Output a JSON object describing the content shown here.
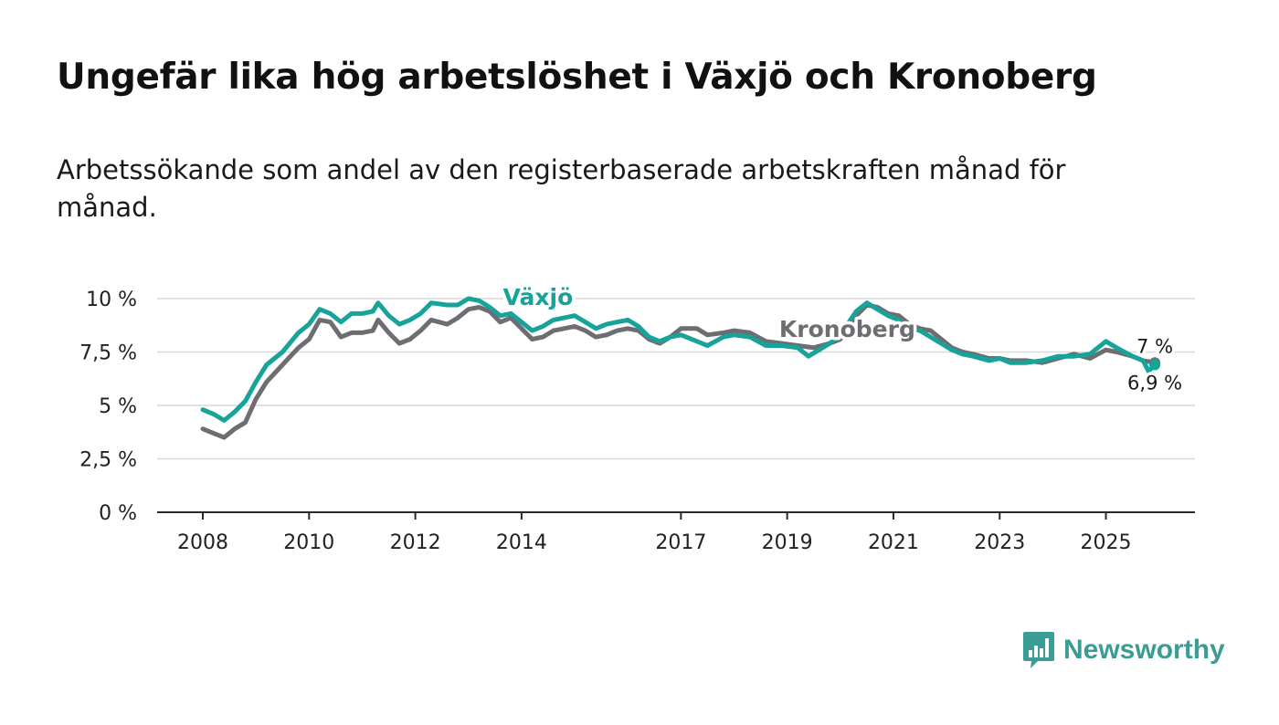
{
  "header": {
    "title": "Ungefär lika hög arbetslöshet i Växjö och Kronoberg",
    "subtitle": "Arbetssökande som andel av den registerbaserade arbetskraften månad för månad."
  },
  "brand": {
    "name": "Newsworthy",
    "color": "#3a9c94"
  },
  "chart_data": {
    "type": "line",
    "title": "Ungefär lika hög arbetslöshet i Växjö och Kronoberg",
    "subtitle": "Arbetssökande som andel av den registerbaserade arbetskraften månad för månad.",
    "xlabel": "",
    "ylabel": "",
    "xlim": [
      2008.0,
      2025.92
    ],
    "ylim": [
      0,
      10
    ],
    "y_ticks": [
      0,
      2.5,
      5,
      7.5,
      10
    ],
    "y_tick_labels": [
      "0 %",
      "2,5 %",
      "5 %",
      "7,5 %",
      "10 %"
    ],
    "x_ticks": [
      2008,
      2010,
      2012,
      2014,
      2017,
      2019,
      2021,
      2023,
      2025
    ],
    "x_tick_labels": [
      "2008",
      "2010",
      "2012",
      "2014",
      "2017",
      "2019",
      "2021",
      "2023",
      "2025"
    ],
    "grid": true,
    "series": [
      {
        "name": "Kronoberg",
        "color": "#6d6d72",
        "label": "Kronoberg",
        "end_label": "7 %",
        "points": [
          [
            2008.0,
            3.9
          ],
          [
            2008.2,
            3.7
          ],
          [
            2008.4,
            3.5
          ],
          [
            2008.6,
            3.9
          ],
          [
            2008.8,
            4.2
          ],
          [
            2009.0,
            5.3
          ],
          [
            2009.2,
            6.1
          ],
          [
            2009.5,
            6.9
          ],
          [
            2009.8,
            7.7
          ],
          [
            2010.0,
            8.1
          ],
          [
            2010.2,
            9.0
          ],
          [
            2010.4,
            8.9
          ],
          [
            2010.6,
            8.2
          ],
          [
            2010.8,
            8.4
          ],
          [
            2011.0,
            8.4
          ],
          [
            2011.2,
            8.5
          ],
          [
            2011.3,
            9.0
          ],
          [
            2011.5,
            8.4
          ],
          [
            2011.7,
            7.9
          ],
          [
            2011.9,
            8.1
          ],
          [
            2012.1,
            8.5
          ],
          [
            2012.3,
            9.0
          ],
          [
            2012.6,
            8.8
          ],
          [
            2012.8,
            9.1
          ],
          [
            2013.0,
            9.5
          ],
          [
            2013.2,
            9.6
          ],
          [
            2013.4,
            9.4
          ],
          [
            2013.6,
            8.9
          ],
          [
            2013.8,
            9.1
          ],
          [
            2014.0,
            8.6
          ],
          [
            2014.2,
            8.1
          ],
          [
            2014.4,
            8.2
          ],
          [
            2014.6,
            8.5
          ],
          [
            2014.8,
            8.6
          ],
          [
            2015.0,
            8.7
          ],
          [
            2015.2,
            8.5
          ],
          [
            2015.4,
            8.2
          ],
          [
            2015.6,
            8.3
          ],
          [
            2015.8,
            8.5
          ],
          [
            2016.0,
            8.6
          ],
          [
            2016.2,
            8.5
          ],
          [
            2016.4,
            8.1
          ],
          [
            2016.6,
            7.9
          ],
          [
            2016.8,
            8.2
          ],
          [
            2017.0,
            8.6
          ],
          [
            2017.3,
            8.6
          ],
          [
            2017.5,
            8.3
          ],
          [
            2017.8,
            8.4
          ],
          [
            2018.0,
            8.5
          ],
          [
            2018.3,
            8.4
          ],
          [
            2018.6,
            8.0
          ],
          [
            2018.9,
            7.9
          ],
          [
            2019.2,
            7.8
          ],
          [
            2019.5,
            7.7
          ],
          [
            2019.8,
            7.9
          ],
          [
            2020.0,
            8.1
          ],
          [
            2020.3,
            9.2
          ],
          [
            2020.5,
            9.7
          ],
          [
            2020.7,
            9.6
          ],
          [
            2020.9,
            9.3
          ],
          [
            2021.1,
            9.2
          ],
          [
            2021.3,
            8.8
          ],
          [
            2021.5,
            8.6
          ],
          [
            2021.7,
            8.5
          ],
          [
            2021.9,
            8.1
          ],
          [
            2022.1,
            7.7
          ],
          [
            2022.3,
            7.5
          ],
          [
            2022.5,
            7.4
          ],
          [
            2022.8,
            7.2
          ],
          [
            2023.0,
            7.2
          ],
          [
            2023.2,
            7.1
          ],
          [
            2023.5,
            7.1
          ],
          [
            2023.8,
            7.0
          ],
          [
            2024.1,
            7.2
          ],
          [
            2024.4,
            7.4
          ],
          [
            2024.7,
            7.2
          ],
          [
            2025.0,
            7.6
          ],
          [
            2025.2,
            7.5
          ],
          [
            2025.5,
            7.3
          ],
          [
            2025.7,
            7.1
          ],
          [
            2025.92,
            7.0
          ]
        ]
      },
      {
        "name": "Växjö",
        "color": "#17a399",
        "label": "Växjö",
        "end_label": "6,9 %",
        "points": [
          [
            2008.0,
            4.8
          ],
          [
            2008.2,
            4.6
          ],
          [
            2008.4,
            4.3
          ],
          [
            2008.6,
            4.7
          ],
          [
            2008.8,
            5.2
          ],
          [
            2009.0,
            6.1
          ],
          [
            2009.2,
            6.9
          ],
          [
            2009.5,
            7.5
          ],
          [
            2009.8,
            8.4
          ],
          [
            2010.0,
            8.8
          ],
          [
            2010.2,
            9.5
          ],
          [
            2010.4,
            9.3
          ],
          [
            2010.6,
            8.9
          ],
          [
            2010.8,
            9.3
          ],
          [
            2011.0,
            9.3
          ],
          [
            2011.2,
            9.4
          ],
          [
            2011.3,
            9.8
          ],
          [
            2011.5,
            9.2
          ],
          [
            2011.7,
            8.8
          ],
          [
            2011.9,
            9.0
          ],
          [
            2012.1,
            9.3
          ],
          [
            2012.3,
            9.8
          ],
          [
            2012.6,
            9.7
          ],
          [
            2012.8,
            9.7
          ],
          [
            2013.0,
            10.0
          ],
          [
            2013.2,
            9.9
          ],
          [
            2013.4,
            9.6
          ],
          [
            2013.6,
            9.2
          ],
          [
            2013.8,
            9.3
          ],
          [
            2014.0,
            8.9
          ],
          [
            2014.2,
            8.5
          ],
          [
            2014.4,
            8.7
          ],
          [
            2014.6,
            9.0
          ],
          [
            2014.8,
            9.1
          ],
          [
            2015.0,
            9.2
          ],
          [
            2015.2,
            8.9
          ],
          [
            2015.4,
            8.6
          ],
          [
            2015.6,
            8.8
          ],
          [
            2015.8,
            8.9
          ],
          [
            2016.0,
            9.0
          ],
          [
            2016.2,
            8.7
          ],
          [
            2016.4,
            8.2
          ],
          [
            2016.6,
            8.0
          ],
          [
            2016.8,
            8.2
          ],
          [
            2017.0,
            8.3
          ],
          [
            2017.3,
            8.0
          ],
          [
            2017.5,
            7.8
          ],
          [
            2017.8,
            8.2
          ],
          [
            2018.0,
            8.3
          ],
          [
            2018.3,
            8.2
          ],
          [
            2018.6,
            7.8
          ],
          [
            2018.9,
            7.8
          ],
          [
            2019.2,
            7.7
          ],
          [
            2019.4,
            7.3
          ],
          [
            2019.6,
            7.6
          ],
          [
            2019.8,
            7.9
          ],
          [
            2020.0,
            8.3
          ],
          [
            2020.3,
            9.4
          ],
          [
            2020.5,
            9.8
          ],
          [
            2020.7,
            9.5
          ],
          [
            2020.9,
            9.2
          ],
          [
            2021.1,
            9.0
          ],
          [
            2021.3,
            8.6
          ],
          [
            2021.5,
            8.5
          ],
          [
            2021.7,
            8.2
          ],
          [
            2021.9,
            7.9
          ],
          [
            2022.1,
            7.6
          ],
          [
            2022.3,
            7.4
          ],
          [
            2022.5,
            7.3
          ],
          [
            2022.8,
            7.1
          ],
          [
            2023.0,
            7.2
          ],
          [
            2023.2,
            7.0
          ],
          [
            2023.5,
            7.0
          ],
          [
            2023.8,
            7.1
          ],
          [
            2024.1,
            7.3
          ],
          [
            2024.4,
            7.3
          ],
          [
            2024.7,
            7.4
          ],
          [
            2025.0,
            8.0
          ],
          [
            2025.2,
            7.7
          ],
          [
            2025.5,
            7.3
          ],
          [
            2025.7,
            7.1
          ],
          [
            2025.8,
            6.6
          ],
          [
            2025.92,
            6.9
          ]
        ]
      }
    ]
  }
}
